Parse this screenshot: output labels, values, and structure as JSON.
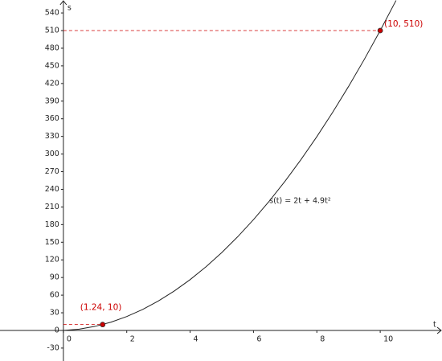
{
  "chart_data": {
    "type": "line",
    "annotation": "s(t) = 2t + 4.9t²",
    "x_label": "t",
    "y_label": "s",
    "xlim": [
      -2,
      11.95
    ],
    "ylim": [
      -52,
      562
    ],
    "xticks": [
      0,
      2,
      4,
      6,
      8,
      10
    ],
    "yticks": [
      -30,
      0,
      30,
      60,
      90,
      120,
      150,
      180,
      210,
      240,
      270,
      300,
      330,
      360,
      390,
      420,
      450,
      480,
      510,
      540
    ],
    "series": [
      {
        "color": "#222222",
        "x": [
          0,
          0.5,
          1,
          1.5,
          2,
          2.5,
          3,
          3.5,
          4,
          4.5,
          5,
          5.5,
          6,
          6.5,
          7,
          7.5,
          8,
          8.5,
          9,
          9.5,
          10,
          10.5
        ],
        "values": [
          0,
          2.225,
          6.9,
          14.025,
          23.6,
          35.625,
          50.1,
          67.025,
          86.4,
          108.225,
          132.5,
          159.225,
          188.4,
          220.025,
          254.1,
          290.625,
          329.6,
          371.025,
          414.9,
          461.225,
          510,
          561.225
        ]
      }
    ],
    "points": {
      "color": "#cc0000",
      "x": [
        1.24,
        10
      ],
      "values": [
        10,
        510
      ],
      "value_labels": [
        "(1.24, 10)",
        "(10, 510)"
      ]
    }
  }
}
